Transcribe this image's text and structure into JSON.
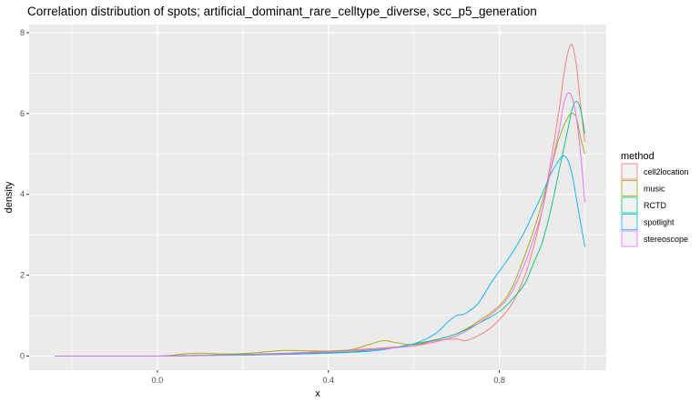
{
  "chart_data": {
    "type": "line",
    "title": "Correlation distribution of spots; artificial_dominant_rare_celltype_diverse, scc_p5_generation",
    "xlabel": "x",
    "ylabel": "density",
    "xlim": [
      -0.3,
      1.05
    ],
    "ylim": [
      -0.35,
      8.2
    ],
    "x_ticks": [
      0.0,
      0.4,
      0.8
    ],
    "x_tick_labels": [
      "0.0",
      "0.4",
      "0.8"
    ],
    "y_ticks": [
      0,
      2,
      4,
      6,
      8
    ],
    "y_tick_labels": [
      "0",
      "2",
      "4",
      "6",
      "8"
    ],
    "grid": true,
    "legend": {
      "title": "method",
      "position": "right"
    },
    "series": [
      {
        "name": "cell2location",
        "color": "#F8766D",
        "x": [
          -0.24,
          0.0,
          0.1,
          0.2,
          0.3,
          0.4,
          0.45,
          0.5,
          0.55,
          0.6,
          0.65,
          0.7,
          0.72,
          0.75,
          0.78,
          0.8,
          0.83,
          0.86,
          0.88,
          0.9,
          0.92,
          0.94,
          0.95,
          0.96,
          0.97,
          0.98,
          0.99,
          1.0
        ],
        "y": [
          0.0,
          0.0,
          0.02,
          0.04,
          0.07,
          0.12,
          0.15,
          0.18,
          0.22,
          0.25,
          0.38,
          0.42,
          0.38,
          0.5,
          0.7,
          0.9,
          1.3,
          2.0,
          2.7,
          3.6,
          4.8,
          6.1,
          6.9,
          7.5,
          7.7,
          7.2,
          6.2,
          5.3
        ]
      },
      {
        "name": "music",
        "color": "#A3A500",
        "x": [
          -0.24,
          0.0,
          0.05,
          0.1,
          0.15,
          0.2,
          0.25,
          0.3,
          0.35,
          0.4,
          0.45,
          0.5,
          0.53,
          0.56,
          0.6,
          0.65,
          0.7,
          0.75,
          0.8,
          0.83,
          0.86,
          0.88,
          0.9,
          0.92,
          0.94,
          0.96,
          0.97,
          0.98,
          0.99,
          1.0
        ],
        "y": [
          0.0,
          0.0,
          0.04,
          0.07,
          0.05,
          0.06,
          0.1,
          0.14,
          0.13,
          0.12,
          0.15,
          0.3,
          0.38,
          0.33,
          0.28,
          0.4,
          0.55,
          0.85,
          1.25,
          1.7,
          2.5,
          3.1,
          3.8,
          4.6,
          5.4,
          5.9,
          6.0,
          5.9,
          5.4,
          5.0
        ]
      },
      {
        "name": "RCTD",
        "color": "#00BF7D",
        "x": [
          -0.24,
          0.0,
          0.1,
          0.2,
          0.3,
          0.35,
          0.4,
          0.45,
          0.5,
          0.55,
          0.6,
          0.65,
          0.7,
          0.75,
          0.8,
          0.83,
          0.86,
          0.88,
          0.9,
          0.92,
          0.94,
          0.96,
          0.97,
          0.98,
          0.99,
          1.0
        ],
        "y": [
          0.0,
          0.0,
          0.02,
          0.04,
          0.06,
          0.07,
          0.08,
          0.1,
          0.15,
          0.2,
          0.3,
          0.4,
          0.55,
          0.8,
          1.1,
          1.4,
          1.8,
          2.3,
          2.8,
          3.6,
          4.6,
          5.6,
          6.1,
          6.3,
          6.1,
          5.5
        ]
      },
      {
        "name": "spotlight",
        "color": "#00B0F6",
        "x": [
          -0.24,
          0.0,
          0.1,
          0.2,
          0.3,
          0.4,
          0.5,
          0.55,
          0.6,
          0.65,
          0.68,
          0.7,
          0.72,
          0.75,
          0.78,
          0.8,
          0.83,
          0.86,
          0.88,
          0.9,
          0.92,
          0.94,
          0.95,
          0.96,
          0.97,
          0.98,
          0.99,
          1.0
        ],
        "y": [
          0.0,
          0.0,
          0.01,
          0.02,
          0.04,
          0.07,
          0.12,
          0.2,
          0.3,
          0.55,
          0.85,
          1.0,
          1.05,
          1.3,
          1.8,
          2.1,
          2.55,
          3.1,
          3.55,
          4.0,
          4.5,
          4.85,
          4.95,
          4.85,
          4.5,
          3.9,
          3.3,
          2.7
        ]
      },
      {
        "name": "stereoscope",
        "color": "#E76BF3",
        "x": [
          -0.24,
          0.0,
          0.1,
          0.2,
          0.3,
          0.4,
          0.5,
          0.6,
          0.65,
          0.7,
          0.75,
          0.8,
          0.83,
          0.86,
          0.88,
          0.9,
          0.92,
          0.94,
          0.95,
          0.96,
          0.97,
          0.98,
          0.99,
          1.0
        ],
        "y": [
          0.0,
          0.0,
          0.01,
          0.03,
          0.06,
          0.1,
          0.16,
          0.25,
          0.35,
          0.5,
          0.8,
          1.2,
          1.6,
          2.3,
          2.9,
          3.6,
          4.6,
          5.6,
          6.2,
          6.5,
          6.4,
          5.9,
          5.0,
          3.8
        ]
      }
    ]
  }
}
